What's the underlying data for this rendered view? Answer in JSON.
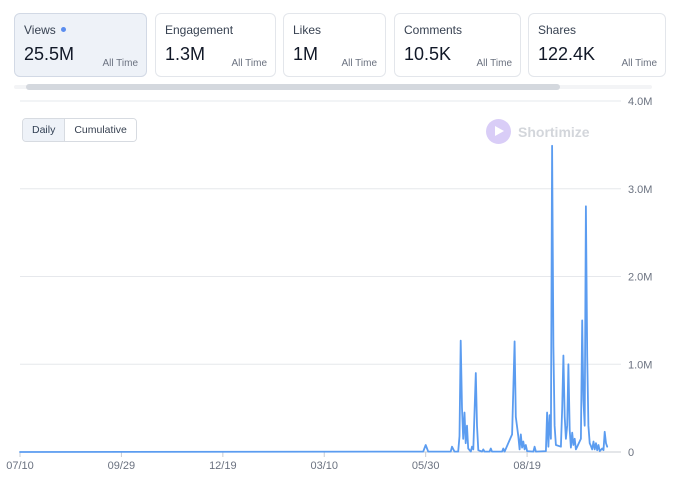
{
  "metrics": [
    {
      "label": "Views",
      "value": "25.5M",
      "sub": "All Time",
      "active": true
    },
    {
      "label": "Engagement",
      "value": "1.3M",
      "sub": "All Time",
      "active": false
    },
    {
      "label": "Likes",
      "value": "1M",
      "sub": "All Time",
      "active": false
    },
    {
      "label": "Comments",
      "value": "10.5K",
      "sub": "All Time",
      "active": false
    },
    {
      "label": "Shares",
      "value": "122.4K",
      "sub": "All Time",
      "active": false
    }
  ],
  "toggle": {
    "daily": "Daily",
    "cumulative": "Cumulative",
    "selected": "Daily"
  },
  "watermark": "Shortimize",
  "colors": {
    "line": "#5b9cf0",
    "accent_dot": "#5b8def",
    "active_card_bg": "#eef2f8"
  },
  "chart_data": {
    "type": "line",
    "title": "",
    "xlabel": "",
    "ylabel": "",
    "y_ticks": [
      "0",
      "1.0M",
      "2.0M",
      "3.0M",
      "4.0M"
    ],
    "y_tick_values": [
      0,
      1000000,
      2000000,
      3000000,
      4000000
    ],
    "ylim": [
      0,
      4000000
    ],
    "y_axis_side": "right",
    "grid": true,
    "x_ticks": [
      {
        "label": "07/10",
        "day": 0
      },
      {
        "label": "09/29",
        "day": 81
      },
      {
        "label": "12/19",
        "day": 162
      },
      {
        "label": "03/10",
        "day": 243
      },
      {
        "label": "05/30",
        "day": 324
      },
      {
        "label": "08/19",
        "day": 405
      }
    ],
    "x_domain": [
      0,
      480
    ],
    "baseline_end": 322,
    "series": [
      {
        "values": [
          [
            322,
            5000
          ],
          [
            324,
            80000
          ],
          [
            326,
            5000
          ],
          [
            344,
            5000
          ],
          [
            345,
            60000
          ],
          [
            347,
            5000
          ],
          [
            350,
            5000
          ],
          [
            351,
            180000
          ],
          [
            352,
            1270000
          ],
          [
            353,
            500000
          ],
          [
            354,
            150000
          ],
          [
            355,
            450000
          ],
          [
            356,
            100000
          ],
          [
            357,
            300000
          ],
          [
            358,
            40000
          ],
          [
            360,
            5000
          ],
          [
            361,
            60000
          ],
          [
            362,
            30000
          ],
          [
            364,
            900000
          ],
          [
            365,
            300000
          ],
          [
            366,
            20000
          ],
          [
            369,
            5000
          ],
          [
            370,
            30000
          ],
          [
            371,
            5000
          ],
          [
            375,
            5000
          ],
          [
            376,
            40000
          ],
          [
            377,
            5000
          ],
          [
            385,
            5000
          ],
          [
            386,
            40000
          ],
          [
            387,
            5000
          ],
          [
            393,
            200000
          ],
          [
            395,
            1260000
          ],
          [
            396,
            400000
          ],
          [
            398,
            180000
          ],
          [
            399,
            30000
          ],
          [
            400,
            200000
          ],
          [
            401,
            50000
          ],
          [
            402,
            120000
          ],
          [
            403,
            30000
          ],
          [
            404,
            80000
          ],
          [
            405,
            10000
          ],
          [
            410,
            5000
          ],
          [
            411,
            60000
          ],
          [
            412,
            5000
          ],
          [
            420,
            10000
          ],
          [
            421,
            450000
          ],
          [
            422,
            60000
          ],
          [
            423,
            420000
          ],
          [
            424,
            150000
          ],
          [
            425,
            3490000
          ],
          [
            426,
            1200000
          ],
          [
            427,
            300000
          ],
          [
            428,
            80000
          ],
          [
            432,
            60000
          ],
          [
            433,
            500000
          ],
          [
            434,
            1100000
          ],
          [
            435,
            400000
          ],
          [
            436,
            150000
          ],
          [
            437,
            300000
          ],
          [
            438,
            1000000
          ],
          [
            439,
            250000
          ],
          [
            440,
            50000
          ],
          [
            441,
            220000
          ],
          [
            442,
            80000
          ],
          [
            443,
            150000
          ],
          [
            444,
            30000
          ],
          [
            445,
            60000
          ],
          [
            448,
            150000
          ],
          [
            449,
            1500000
          ],
          [
            450,
            600000
          ],
          [
            451,
            300000
          ],
          [
            452,
            2800000
          ],
          [
            453,
            1100000
          ],
          [
            454,
            300000
          ],
          [
            455,
            100000
          ],
          [
            456,
            70000
          ],
          [
            457,
            30000
          ],
          [
            458,
            120000
          ],
          [
            459,
            30000
          ],
          [
            460,
            100000
          ],
          [
            461,
            20000
          ],
          [
            462,
            80000
          ],
          [
            463,
            10000
          ],
          [
            465,
            40000
          ],
          [
            466,
            20000
          ],
          [
            467,
            230000
          ],
          [
            468,
            100000
          ],
          [
            469,
            60000
          ]
        ]
      }
    ]
  }
}
